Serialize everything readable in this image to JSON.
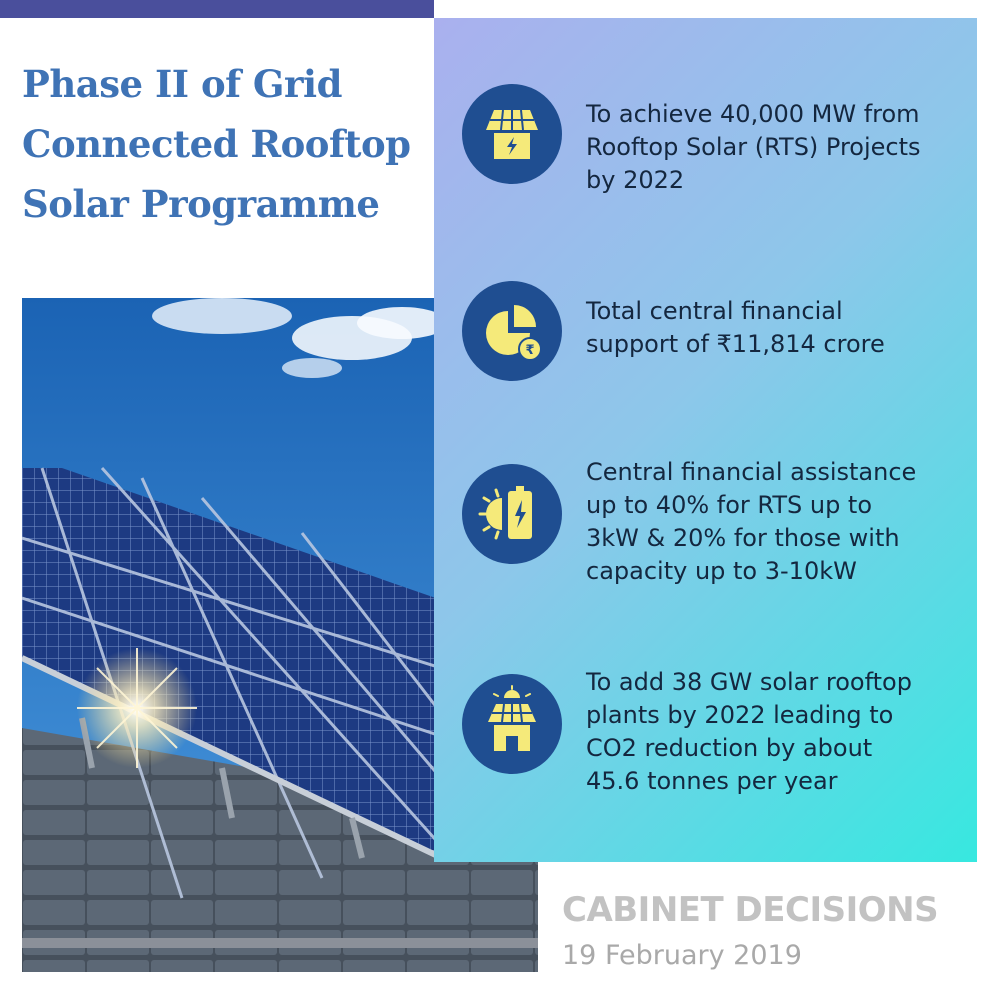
{
  "header": {
    "title_lines": [
      "Phase II of Grid",
      "Connected Rooftop",
      "Solar Programme"
    ]
  },
  "photo": {
    "subject": "rooftop-solar-panels-photo"
  },
  "highlights": [
    {
      "icon": "solar-house-icon",
      "lines": [
        "To achieve 40,000 MW from",
        "Rooftop Solar (RTS) Projects",
        "by 2022"
      ]
    },
    {
      "icon": "pie-chart-rupee-icon",
      "lines": [
        "Total central financial",
        "support of ₹11,814 crore"
      ]
    },
    {
      "icon": "sun-battery-icon",
      "lines": [
        "Central financial assistance",
        "up to 40% for RTS up to",
        "3kW & 20% for those with",
        "capacity up to 3-10kW"
      ]
    },
    {
      "icon": "solar-rooftop-plant-icon",
      "lines": [
        "To add 38 GW solar rooftop",
        "plants by 2022 leading to",
        "CO2 reduction by about",
        "45.6 tonnes per year"
      ]
    }
  ],
  "footer": {
    "heading": "CABINET DECISIONS",
    "date": "19 February 2019"
  },
  "colors": {
    "title": "#3f73b5",
    "top_bar": "#4a4f9c",
    "icon_circle": "#1f4e91",
    "icon_yellow": "#f5ea7a",
    "panel_start": "#aab0ee",
    "panel_end": "#37e8e0",
    "footer_text": "#c2c2c2"
  }
}
